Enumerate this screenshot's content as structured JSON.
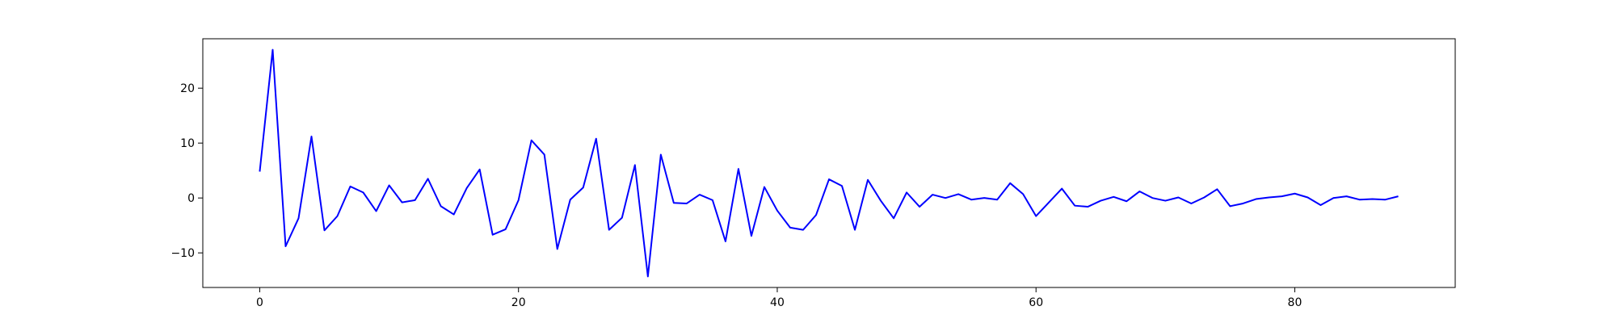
{
  "chart_data": {
    "type": "line",
    "title": "",
    "xlabel": "",
    "ylabel": "",
    "xlim": [
      -4.4,
      92.4
    ],
    "ylim": [
      -16.3,
      29.0
    ],
    "grid": false,
    "legend": "none",
    "xticks": [
      0,
      20,
      40,
      60,
      80
    ],
    "yticks": [
      -10,
      0,
      10,
      20
    ],
    "colors": {
      "line": "#0000ff",
      "axes": "#000000",
      "background": "#ffffff"
    },
    "series": [
      {
        "x": [
          0,
          1,
          2,
          3,
          4,
          5,
          6,
          7,
          8,
          9,
          10,
          11,
          12,
          13,
          14,
          15,
          16,
          17,
          18,
          19,
          20,
          21,
          22,
          23,
          24,
          25,
          26,
          27,
          28,
          29,
          30,
          31,
          32,
          33,
          34,
          35,
          36,
          37,
          38,
          39,
          40,
          41,
          42,
          43,
          44,
          45,
          46,
          47,
          48,
          49,
          50,
          51,
          52,
          53,
          54,
          55,
          56,
          57,
          58,
          59,
          60,
          61,
          62,
          63,
          64,
          65,
          66,
          67,
          68,
          69,
          70,
          71,
          72,
          73,
          74,
          75,
          76,
          77,
          78,
          79,
          80,
          81,
          82,
          83,
          84,
          85,
          86,
          87,
          88
        ],
        "values": [
          4.8,
          27.0,
          -8.8,
          -3.7,
          11.2,
          -5.9,
          -3.3,
          2.1,
          1.0,
          -2.4,
          2.3,
          -0.8,
          -0.4,
          3.5,
          -1.5,
          -3.0,
          1.8,
          5.2,
          -6.7,
          -5.7,
          -0.4,
          10.5,
          7.9,
          -9.3,
          -0.3,
          1.9,
          10.8,
          -5.8,
          -3.6,
          6.0,
          -14.3,
          7.9,
          -0.9,
          -1.0,
          0.6,
          -0.4,
          -7.9,
          5.3,
          -6.9,
          2.0,
          -2.3,
          -5.4,
          -5.8,
          -3.1,
          3.4,
          2.2,
          -5.8,
          3.3,
          -0.5,
          -3.7,
          1.0,
          -1.6,
          0.6,
          0.0,
          0.7,
          -0.3,
          0.0,
          -0.3,
          2.7,
          0.7,
          -3.3,
          -0.8,
          1.7,
          -1.4,
          -1.6,
          -0.5,
          0.2,
          -0.6,
          1.2,
          0.0,
          -0.5,
          0.1,
          -1.0,
          0.1,
          1.6,
          -1.5,
          -1.0,
          -0.2,
          0.1,
          0.3,
          0.8,
          0.1,
          -1.3,
          0.0,
          0.3,
          -0.3,
          -0.2,
          -0.3,
          0.3
        ]
      }
    ]
  }
}
